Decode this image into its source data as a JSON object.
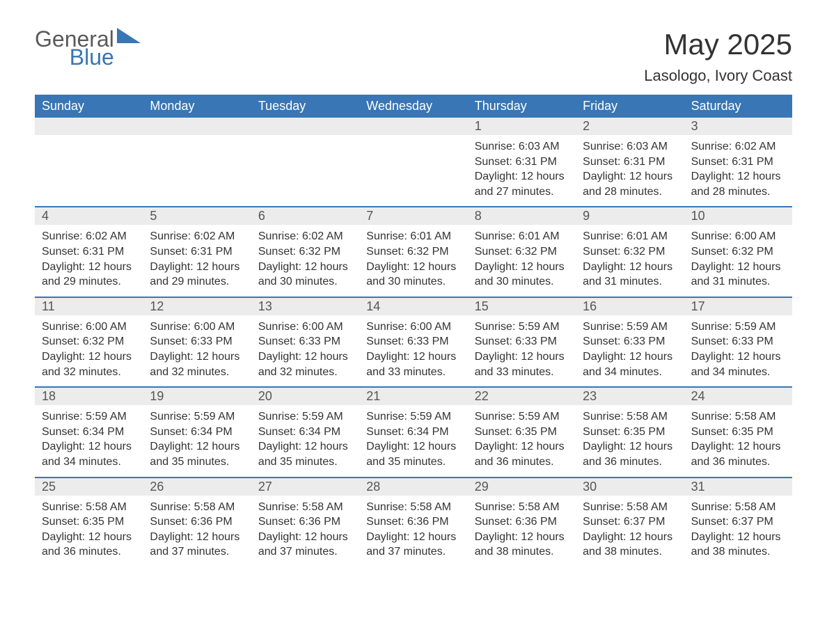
{
  "logo": {
    "general": "General",
    "blue": "Blue"
  },
  "title": "May 2025",
  "location": "Lasologo, Ivory Coast",
  "colors": {
    "header_bg": "#3876b5",
    "header_text": "#ffffff",
    "day_bar_bg": "#ececec",
    "row_border": "#3876b5",
    "logo_gray": "#5a5a5a",
    "logo_blue": "#3876b5"
  },
  "weekdays": [
    "Sunday",
    "Monday",
    "Tuesday",
    "Wednesday",
    "Thursday",
    "Friday",
    "Saturday"
  ],
  "weeks": [
    [
      null,
      null,
      null,
      null,
      {
        "day": "1",
        "sunrise": "Sunrise: 6:03 AM",
        "sunset": "Sunset: 6:31 PM",
        "daylight1": "Daylight: 12 hours",
        "daylight2": "and 27 minutes."
      },
      {
        "day": "2",
        "sunrise": "Sunrise: 6:03 AM",
        "sunset": "Sunset: 6:31 PM",
        "daylight1": "Daylight: 12 hours",
        "daylight2": "and 28 minutes."
      },
      {
        "day": "3",
        "sunrise": "Sunrise: 6:02 AM",
        "sunset": "Sunset: 6:31 PM",
        "daylight1": "Daylight: 12 hours",
        "daylight2": "and 28 minutes."
      }
    ],
    [
      {
        "day": "4",
        "sunrise": "Sunrise: 6:02 AM",
        "sunset": "Sunset: 6:31 PM",
        "daylight1": "Daylight: 12 hours",
        "daylight2": "and 29 minutes."
      },
      {
        "day": "5",
        "sunrise": "Sunrise: 6:02 AM",
        "sunset": "Sunset: 6:31 PM",
        "daylight1": "Daylight: 12 hours",
        "daylight2": "and 29 minutes."
      },
      {
        "day": "6",
        "sunrise": "Sunrise: 6:02 AM",
        "sunset": "Sunset: 6:32 PM",
        "daylight1": "Daylight: 12 hours",
        "daylight2": "and 30 minutes."
      },
      {
        "day": "7",
        "sunrise": "Sunrise: 6:01 AM",
        "sunset": "Sunset: 6:32 PM",
        "daylight1": "Daylight: 12 hours",
        "daylight2": "and 30 minutes."
      },
      {
        "day": "8",
        "sunrise": "Sunrise: 6:01 AM",
        "sunset": "Sunset: 6:32 PM",
        "daylight1": "Daylight: 12 hours",
        "daylight2": "and 30 minutes."
      },
      {
        "day": "9",
        "sunrise": "Sunrise: 6:01 AM",
        "sunset": "Sunset: 6:32 PM",
        "daylight1": "Daylight: 12 hours",
        "daylight2": "and 31 minutes."
      },
      {
        "day": "10",
        "sunrise": "Sunrise: 6:00 AM",
        "sunset": "Sunset: 6:32 PM",
        "daylight1": "Daylight: 12 hours",
        "daylight2": "and 31 minutes."
      }
    ],
    [
      {
        "day": "11",
        "sunrise": "Sunrise: 6:00 AM",
        "sunset": "Sunset: 6:32 PM",
        "daylight1": "Daylight: 12 hours",
        "daylight2": "and 32 minutes."
      },
      {
        "day": "12",
        "sunrise": "Sunrise: 6:00 AM",
        "sunset": "Sunset: 6:33 PM",
        "daylight1": "Daylight: 12 hours",
        "daylight2": "and 32 minutes."
      },
      {
        "day": "13",
        "sunrise": "Sunrise: 6:00 AM",
        "sunset": "Sunset: 6:33 PM",
        "daylight1": "Daylight: 12 hours",
        "daylight2": "and 32 minutes."
      },
      {
        "day": "14",
        "sunrise": "Sunrise: 6:00 AM",
        "sunset": "Sunset: 6:33 PM",
        "daylight1": "Daylight: 12 hours",
        "daylight2": "and 33 minutes."
      },
      {
        "day": "15",
        "sunrise": "Sunrise: 5:59 AM",
        "sunset": "Sunset: 6:33 PM",
        "daylight1": "Daylight: 12 hours",
        "daylight2": "and 33 minutes."
      },
      {
        "day": "16",
        "sunrise": "Sunrise: 5:59 AM",
        "sunset": "Sunset: 6:33 PM",
        "daylight1": "Daylight: 12 hours",
        "daylight2": "and 34 minutes."
      },
      {
        "day": "17",
        "sunrise": "Sunrise: 5:59 AM",
        "sunset": "Sunset: 6:33 PM",
        "daylight1": "Daylight: 12 hours",
        "daylight2": "and 34 minutes."
      }
    ],
    [
      {
        "day": "18",
        "sunrise": "Sunrise: 5:59 AM",
        "sunset": "Sunset: 6:34 PM",
        "daylight1": "Daylight: 12 hours",
        "daylight2": "and 34 minutes."
      },
      {
        "day": "19",
        "sunrise": "Sunrise: 5:59 AM",
        "sunset": "Sunset: 6:34 PM",
        "daylight1": "Daylight: 12 hours",
        "daylight2": "and 35 minutes."
      },
      {
        "day": "20",
        "sunrise": "Sunrise: 5:59 AM",
        "sunset": "Sunset: 6:34 PM",
        "daylight1": "Daylight: 12 hours",
        "daylight2": "and 35 minutes."
      },
      {
        "day": "21",
        "sunrise": "Sunrise: 5:59 AM",
        "sunset": "Sunset: 6:34 PM",
        "daylight1": "Daylight: 12 hours",
        "daylight2": "and 35 minutes."
      },
      {
        "day": "22",
        "sunrise": "Sunrise: 5:59 AM",
        "sunset": "Sunset: 6:35 PM",
        "daylight1": "Daylight: 12 hours",
        "daylight2": "and 36 minutes."
      },
      {
        "day": "23",
        "sunrise": "Sunrise: 5:58 AM",
        "sunset": "Sunset: 6:35 PM",
        "daylight1": "Daylight: 12 hours",
        "daylight2": "and 36 minutes."
      },
      {
        "day": "24",
        "sunrise": "Sunrise: 5:58 AM",
        "sunset": "Sunset: 6:35 PM",
        "daylight1": "Daylight: 12 hours",
        "daylight2": "and 36 minutes."
      }
    ],
    [
      {
        "day": "25",
        "sunrise": "Sunrise: 5:58 AM",
        "sunset": "Sunset: 6:35 PM",
        "daylight1": "Daylight: 12 hours",
        "daylight2": "and 36 minutes."
      },
      {
        "day": "26",
        "sunrise": "Sunrise: 5:58 AM",
        "sunset": "Sunset: 6:36 PM",
        "daylight1": "Daylight: 12 hours",
        "daylight2": "and 37 minutes."
      },
      {
        "day": "27",
        "sunrise": "Sunrise: 5:58 AM",
        "sunset": "Sunset: 6:36 PM",
        "daylight1": "Daylight: 12 hours",
        "daylight2": "and 37 minutes."
      },
      {
        "day": "28",
        "sunrise": "Sunrise: 5:58 AM",
        "sunset": "Sunset: 6:36 PM",
        "daylight1": "Daylight: 12 hours",
        "daylight2": "and 37 minutes."
      },
      {
        "day": "29",
        "sunrise": "Sunrise: 5:58 AM",
        "sunset": "Sunset: 6:36 PM",
        "daylight1": "Daylight: 12 hours",
        "daylight2": "and 38 minutes."
      },
      {
        "day": "30",
        "sunrise": "Sunrise: 5:58 AM",
        "sunset": "Sunset: 6:37 PM",
        "daylight1": "Daylight: 12 hours",
        "daylight2": "and 38 minutes."
      },
      {
        "day": "31",
        "sunrise": "Sunrise: 5:58 AM",
        "sunset": "Sunset: 6:37 PM",
        "daylight1": "Daylight: 12 hours",
        "daylight2": "and 38 minutes."
      }
    ]
  ]
}
